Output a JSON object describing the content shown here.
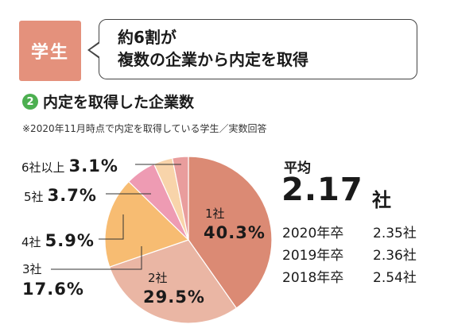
{
  "header": {
    "badge_label": "学生",
    "bubble_line1": "約6割が",
    "bubble_line2": "複数の企業から内定を取得"
  },
  "section": {
    "number": "2",
    "title": "内定を取得した企業数",
    "note": "※2020年11月時点で内定を取得している学生／実数回答"
  },
  "chart_data": {
    "type": "pie",
    "title": "",
    "slices": [
      {
        "label": "1社",
        "value": 40.3,
        "display": "40.3%",
        "color": "#db8a74"
      },
      {
        "label": "2社",
        "value": 29.5,
        "display": "29.5%",
        "color": "#eab6a4"
      },
      {
        "label": "3社",
        "value": 17.6,
        "display": "17.6%",
        "color": "#f7bc72"
      },
      {
        "label": "4社",
        "value": 5.9,
        "display": "5.9%",
        "color": "#ee9bb3"
      },
      {
        "label": "5社",
        "value": 3.7,
        "display": "3.7%",
        "color": "#f8d4aa"
      },
      {
        "label": "6社以上",
        "value": 3.1,
        "display": "3.1%",
        "color": "#e99d9d"
      }
    ]
  },
  "average": {
    "title": "平均",
    "value": "2.17",
    "unit": "社",
    "history": [
      {
        "year": "2020年卒",
        "value": "2.35社"
      },
      {
        "year": "2019年卒",
        "value": "2.36社"
      },
      {
        "year": "2018年卒",
        "value": "2.54社"
      }
    ]
  }
}
